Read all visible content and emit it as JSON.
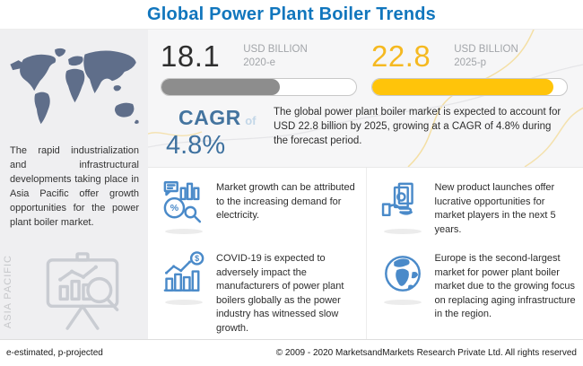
{
  "title": "Global Power Plant Boiler Trends",
  "left_panel": {
    "description": "The rapid industrialization and infrastructural developments taking place in Asia Pacific offer growth opportunities for the power plant boiler market.",
    "region_label": "ASIA PACIFIC"
  },
  "stats": {
    "current": {
      "value": "18.1",
      "unit": "USD BILLION",
      "year": "2020-e",
      "fill_percent": 61,
      "color": "#8d8d8d"
    },
    "projected": {
      "value": "22.8",
      "unit": "USD BILLION",
      "year": "2025-p",
      "fill_percent": 93,
      "color": "#ffc40a"
    },
    "cagr_label": "CAGR",
    "cagr_of": "of",
    "cagr_value": "4.8%",
    "summary": "The global power plant boiler market is expected to account for USD 22.8 billion by 2025, growing at a CAGR of 4.8% during the forecast period."
  },
  "insights": [
    {
      "icon": "market-analysis-icon",
      "text": "Market growth can be attributed to the increasing  demand for electricity."
    },
    {
      "icon": "money-hand-icon",
      "text": "New product launches offer lucrative opportunities for market players in the next 5 years."
    },
    {
      "icon": "growth-chart-dollar-icon",
      "text": "COVID-19 is expected to adversely impact the manufacturers of power plant boilers globally as the power industry has witnessed slow growth."
    },
    {
      "icon": "globe-icon",
      "text": "Europe is the second-largest market for power plant boiler market due to the growing focus on replacing aging infrastructure in the region."
    }
  ],
  "icon_glyphs": {
    "percent": "%",
    "dollar": "$"
  },
  "footer": {
    "left": "e-estimated, p-projected",
    "right": "© 2009 - 2020 MarketsandMarkets Research Private Ltd. All rights reserved"
  },
  "colors": {
    "title_blue": "#1176bd",
    "bar_gray": "#8d8d8d",
    "bar_yellow": "#ffc40a",
    "value_yellow": "#f5b921",
    "cagr_blue": "#44749f",
    "icon_blue": "#4a8ac9",
    "map_slate": "#5f6e8a"
  },
  "chart_data": {
    "type": "bar",
    "title": "Global Power Plant Boiler Trends",
    "categories": [
      "2020-e",
      "2025-p"
    ],
    "values": [
      18.1,
      22.8
    ],
    "ylabel": "USD Billion",
    "annotations": [
      "CAGR of 4.8% during the forecast period (2020–2025)",
      "e-estimated, p-projected"
    ],
    "legend_position": "none",
    "grid": false
  }
}
